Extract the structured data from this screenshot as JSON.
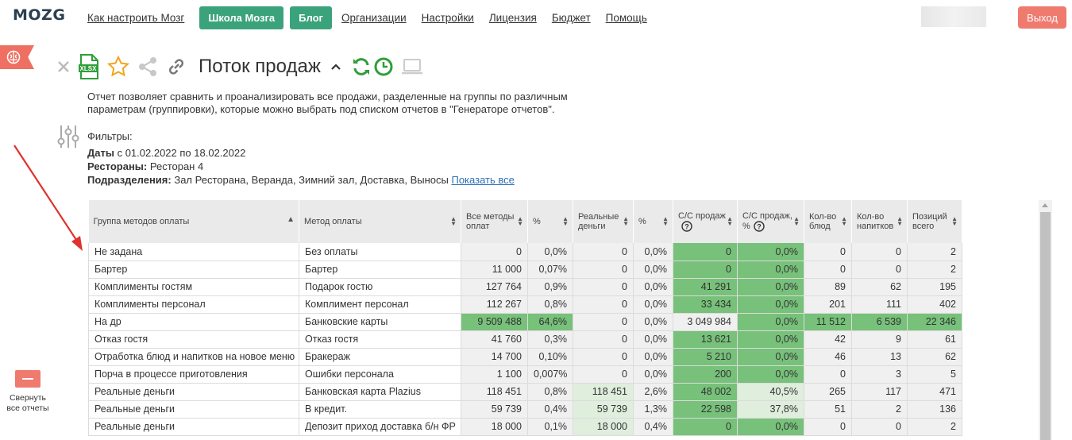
{
  "brand": {
    "logo": "MOZG"
  },
  "nav": {
    "setup_link": "Как настроить Мозг",
    "school_button": "Школа Мозга",
    "blog_button": "Блог",
    "links": [
      "Организации",
      "Настройки",
      "Лицензия",
      "Бюджет",
      "Помощь"
    ],
    "logout_button": "Выход"
  },
  "report": {
    "title": "Поток продаж",
    "description": "Отчет позволяет сравнить и проанализировать все продажи, разделенные на группы по различным параметрам (группировки), которые можно выбрать под списком отчетов в \"Генераторе отчетов\".",
    "filters_label": "Фильтры:",
    "dates_label": "Даты",
    "dates_value": "с 01.02.2022 по 18.02.2022",
    "restaurants_label": "Рестораны:",
    "restaurants_value": "Ресторан 4",
    "divisions_label": "Подразделения:",
    "divisions_value": "Зал Ресторана, Веранда, Зимний зал, Доставка, Выносы",
    "show_all_link": "Показать все",
    "xlsx_label": "XLSX"
  },
  "sidebar": {
    "collapse_label_1": "Свернуть",
    "collapse_label_2": "все отчеты"
  },
  "table": {
    "headers": [
      "Группа методов оплаты",
      "Метод оплаты",
      "Все методы оплат",
      "%",
      "Реальные деньги",
      "%",
      "С/С продаж",
      "С/С продаж, %",
      "Кол-во блюд",
      "Кол-во напитков",
      "Позиций всего"
    ],
    "rows": [
      {
        "group": "Не задана",
        "method": "Без оплаты",
        "all": "0",
        "all_pct": "0,0%",
        "real": "0",
        "real_pct": "0,0%",
        "cost": "0",
        "cost_pct": "0,0%",
        "dishes": "0",
        "drinks": "0",
        "total": "2"
      },
      {
        "group": "Бартер",
        "method": "Бартер",
        "all": "11 000",
        "all_pct": "0,07%",
        "real": "0",
        "real_pct": "0,0%",
        "cost": "0",
        "cost_pct": "0,0%",
        "dishes": "0",
        "drinks": "0",
        "total": "2"
      },
      {
        "group": "Комплименты гостям",
        "method": "Подарок гостю",
        "all": "127 764",
        "all_pct": "0,9%",
        "real": "0",
        "real_pct": "0,0%",
        "cost": "41 291",
        "cost_pct": "0,0%",
        "dishes": "89",
        "drinks": "62",
        "total": "195"
      },
      {
        "group": "Комплименты персонал",
        "method": "Комплимент персонал",
        "all": "112 267",
        "all_pct": "0,8%",
        "real": "0",
        "real_pct": "0,0%",
        "cost": "33 434",
        "cost_pct": "0,0%",
        "dishes": "201",
        "drinks": "111",
        "total": "402"
      },
      {
        "group": "На др",
        "method": "Банковские карты",
        "all": "9 509 488",
        "all_pct": "64,6%",
        "real": "0",
        "real_pct": "0,0%",
        "cost": "3 049 984",
        "cost_pct": "0,0%",
        "dishes": "11 512",
        "drinks": "6 539",
        "total": "22 346"
      },
      {
        "group": "Отказ гостя",
        "method": "Отказ гостя",
        "all": "41 760",
        "all_pct": "0,3%",
        "real": "0",
        "real_pct": "0,0%",
        "cost": "13 621",
        "cost_pct": "0,0%",
        "dishes": "42",
        "drinks": "9",
        "total": "61"
      },
      {
        "group": "Отработка блюд и напитков на новое меню",
        "method": "Бракераж",
        "all": "14 700",
        "all_pct": "0,10%",
        "real": "0",
        "real_pct": "0,0%",
        "cost": "5 210",
        "cost_pct": "0,0%",
        "dishes": "46",
        "drinks": "13",
        "total": "62"
      },
      {
        "group": "Порча в процессе приготовления",
        "method": "Ошибки персонала",
        "all": "1 100",
        "all_pct": "0,007%",
        "real": "0",
        "real_pct": "0,0%",
        "cost": "200",
        "cost_pct": "0,0%",
        "dishes": "0",
        "drinks": "3",
        "total": "5"
      },
      {
        "group": "Реальные деньги",
        "method": "Банковская карта Plazius",
        "all": "118 451",
        "all_pct": "0,8%",
        "real": "118 451",
        "real_pct": "2,6%",
        "cost": "48 002",
        "cost_pct": "40,5%",
        "dishes": "265",
        "drinks": "117",
        "total": "471"
      },
      {
        "group": "Реальные деньги",
        "method": "В кредит.",
        "all": "59 739",
        "all_pct": "0,4%",
        "real": "59 739",
        "real_pct": "1,3%",
        "cost": "22 598",
        "cost_pct": "37,8%",
        "dishes": "51",
        "drinks": "2",
        "total": "136"
      },
      {
        "group": "Реальные деньги",
        "method": "Депозит приход доставка б/н ФР",
        "all": "18 000",
        "all_pct": "0,1%",
        "real": "18 000",
        "real_pct": "0,4%",
        "cost": "0",
        "cost_pct": "0,0%",
        "dishes": "0",
        "drinks": "0",
        "total": "2"
      }
    ],
    "highlights": [
      [
        "",
        "",
        "gray",
        "gray",
        "gray",
        "gray",
        "g",
        "g",
        "gray",
        "gray",
        "gray"
      ],
      [
        "",
        "",
        "gray",
        "gray",
        "gray",
        "gray",
        "g",
        "g",
        "gray",
        "gray",
        "gray"
      ],
      [
        "",
        "",
        "gray",
        "gray",
        "gray",
        "gray",
        "g",
        "g",
        "gray",
        "gray",
        "gray"
      ],
      [
        "",
        "",
        "gray",
        "gray",
        "gray",
        "gray",
        "g",
        "g",
        "gray",
        "gray",
        "gray"
      ],
      [
        "",
        "",
        "g",
        "g",
        "gray",
        "gray",
        "gray",
        "g",
        "g",
        "g",
        "g"
      ],
      [
        "",
        "",
        "gray",
        "gray",
        "gray",
        "gray",
        "g",
        "g",
        "gray",
        "gray",
        "gray"
      ],
      [
        "",
        "",
        "gray",
        "gray",
        "gray",
        "gray",
        "g",
        "g",
        "gray",
        "gray",
        "gray"
      ],
      [
        "",
        "",
        "gray",
        "gray",
        "gray",
        "gray",
        "g",
        "g",
        "gray",
        "gray",
        "gray"
      ],
      [
        "",
        "",
        "gray",
        "gray",
        "lg",
        "gray",
        "g",
        "lg",
        "gray",
        "gray",
        "gray"
      ],
      [
        "",
        "",
        "gray",
        "gray",
        "lg",
        "gray",
        "g",
        "lg",
        "gray",
        "gray",
        "gray"
      ],
      [
        "",
        "",
        "gray",
        "gray",
        "lg",
        "gray",
        "g",
        "g",
        "gray",
        "gray",
        "gray"
      ]
    ]
  },
  "colors": {
    "accent_green": "#3ba37c",
    "logout_red": "#ef7a6e",
    "cell_green": "#77c17a",
    "arrow_red": "#e0322d"
  }
}
